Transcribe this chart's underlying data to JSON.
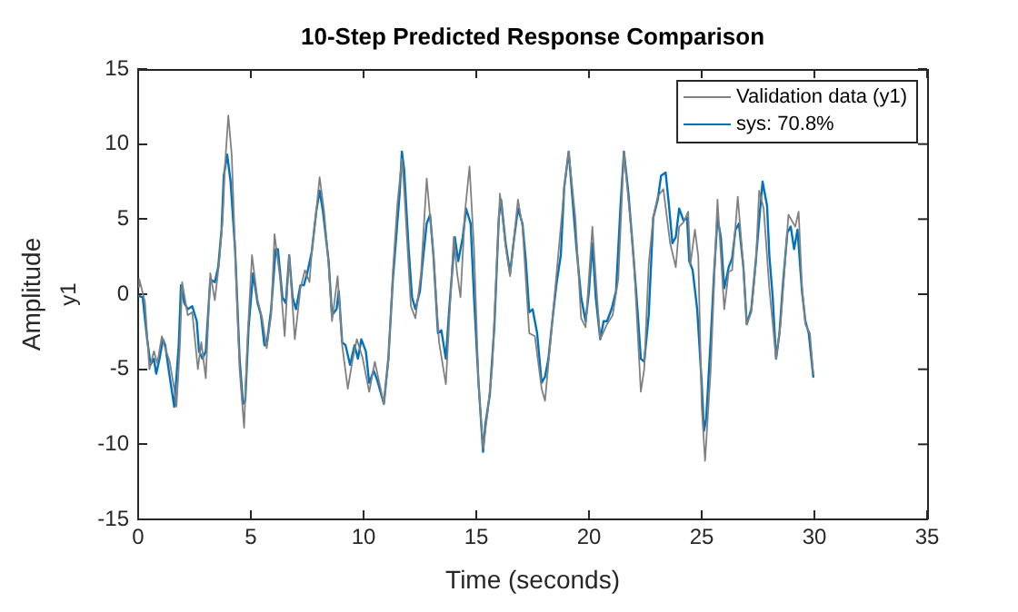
{
  "chart_data": {
    "type": "line",
    "title": "10-Step Predicted Response Comparison",
    "xlabel": "Time (seconds)",
    "ylabel": "Amplitude",
    "annotations": [
      "y1"
    ],
    "xlim": [
      0,
      35
    ],
    "xticks": [
      0,
      5,
      10,
      15,
      20,
      25,
      30,
      35
    ],
    "ylim": [
      -15,
      15
    ],
    "yticks": [
      -15,
      -10,
      -5,
      0,
      5,
      10,
      15
    ],
    "grid": false,
    "legend": "top right",
    "marker": "none",
    "line_style": "solid",
    "series": [
      {
        "name": "Validation data (y1)",
        "color": "#808080",
        "x": [
          0,
          0.05,
          0.3,
          0.5,
          0.7,
          0.85,
          1.05,
          1.2,
          1.4,
          1.6,
          1.7,
          1.85,
          1.95,
          2.2,
          2.4,
          2.65,
          2.8,
          3.0,
          3.2,
          3.4,
          3.6,
          3.75,
          3.85,
          4.0,
          4.15,
          4.3,
          4.5,
          4.7,
          4.85,
          5.05,
          5.3,
          5.5,
          5.7,
          5.9,
          6.05,
          6.3,
          6.5,
          6.7,
          6.95,
          7.2,
          7.4,
          7.6,
          7.7,
          7.9,
          8.05,
          8.25,
          8.45,
          8.6,
          8.85,
          9.05,
          9.3,
          9.5,
          9.7,
          9.95,
          10.25,
          10.5,
          10.9,
          11.1,
          11.3,
          11.5,
          11.7,
          11.8,
          12.1,
          12.3,
          12.55,
          12.8,
          13.1,
          13.35,
          13.65,
          14.0,
          14.15,
          14.3,
          14.5,
          14.7,
          14.9,
          15.1,
          15.3,
          15.5,
          15.7,
          16.05,
          16.3,
          16.5,
          16.85,
          17.05,
          17.35,
          17.6,
          17.9,
          18.05,
          18.3,
          18.6,
          18.9,
          19.1,
          19.4,
          19.65,
          19.85,
          20.15,
          20.35,
          20.5,
          20.8,
          21.05,
          21.3,
          21.55,
          21.8,
          22.0,
          22.3,
          22.45,
          22.65,
          22.85,
          23.05,
          23.3,
          23.6,
          23.85,
          24.0,
          24.2,
          24.4,
          24.5,
          24.7,
          24.85,
          25.0,
          25.15,
          25.4,
          25.7,
          26.0,
          26.2,
          26.35,
          26.6,
          26.85,
          27.0,
          27.2,
          27.4,
          27.55,
          27.75,
          28.0,
          28.3,
          28.5,
          28.85,
          29.15,
          29.3,
          29.45,
          29.6,
          29.8,
          29.95
        ],
        "values": [
          0.5,
          1,
          -0.5,
          -5,
          -3.8,
          -4.6,
          -2.8,
          -3.6,
          -4.5,
          -6.3,
          -7.5,
          -3.5,
          0.8,
          -1.4,
          -1.2,
          -5,
          -3.2,
          -5.6,
          1.4,
          -0.4,
          2.2,
          5,
          8.5,
          11.9,
          9.3,
          3,
          -5,
          -8.9,
          -3,
          2.6,
          -0.4,
          -1.6,
          -3.6,
          -1.4,
          4,
          1,
          -2.8,
          2.6,
          -3,
          0.4,
          1.6,
          0.8,
          2.8,
          5.5,
          7.8,
          5.5,
          2,
          -1.8,
          1.2,
          -3.4,
          -6.3,
          -4.5,
          -3,
          -4.2,
          -6.5,
          -4.5,
          -7.3,
          -4.5,
          1.5,
          6,
          9,
          7,
          -0.8,
          -1.6,
          1.4,
          7.7,
          2.6,
          -3.2,
          -6,
          3.8,
          1.4,
          -0.2,
          5.5,
          8.5,
          3,
          -6,
          -10.3,
          -7.9,
          -5,
          6.7,
          3.2,
          1.2,
          6.3,
          4.5,
          -2.6,
          -2.8,
          -6.3,
          -7.1,
          -3,
          2,
          7,
          9.5,
          5,
          -1.6,
          -2.2,
          4.5,
          0,
          -3,
          -2,
          -1.4,
          1,
          9.5,
          5.5,
          2,
          -6.5,
          -5,
          2,
          5.1,
          6.5,
          7,
          3.4,
          1.8,
          4.5,
          4.8,
          5.5,
          2,
          4.3,
          2.5,
          -7.5,
          -11.1,
          -5,
          6.3,
          -1,
          1.5,
          1.6,
          6.5,
          1.8,
          -2,
          -1.2,
          2,
          6.9,
          5.7,
          0.4,
          -4.3,
          -2,
          5.3,
          4.5,
          5.5,
          0.5,
          -2,
          -2.6,
          -5.3
        ]
      },
      {
        "name": "sys: 70.8%",
        "color": "#0072bd",
        "x": [
          0,
          0.2,
          0.4,
          0.55,
          0.7,
          0.8,
          0.95,
          1.1,
          1.2,
          1.4,
          1.6,
          1.8,
          1.9,
          2.05,
          2.2,
          2.4,
          2.6,
          2.7,
          2.85,
          3.0,
          3.2,
          3.4,
          3.55,
          3.7,
          3.8,
          3.95,
          4.1,
          4.3,
          4.5,
          4.65,
          4.75,
          4.9,
          5.1,
          5.3,
          5.45,
          5.6,
          5.7,
          5.9,
          6.1,
          6.2,
          6.4,
          6.55,
          6.7,
          6.85,
          7.0,
          7.2,
          7.35,
          7.5,
          7.7,
          7.9,
          8.05,
          8.2,
          8.45,
          8.6,
          8.8,
          8.9,
          9.05,
          9.2,
          9.4,
          9.6,
          9.75,
          9.9,
          10.1,
          10.25,
          10.45,
          10.6,
          10.75,
          10.9,
          11.1,
          11.3,
          11.6,
          11.7,
          11.8,
          12.0,
          12.15,
          12.3,
          12.5,
          12.6,
          12.8,
          12.95,
          13.1,
          13.3,
          13.45,
          13.65,
          13.8,
          14.05,
          14.2,
          14.4,
          14.55,
          14.75,
          14.9,
          15.1,
          15.3,
          15.4,
          15.6,
          15.8,
          16.0,
          16.1,
          16.3,
          16.5,
          16.65,
          16.85,
          17.05,
          17.2,
          17.35,
          17.5,
          17.7,
          17.9,
          18.05,
          18.2,
          18.4,
          18.55,
          18.75,
          18.9,
          19.1,
          19.25,
          19.45,
          19.65,
          19.85,
          20.0,
          20.15,
          20.3,
          20.5,
          20.65,
          20.8,
          21.0,
          21.2,
          21.4,
          21.55,
          21.75,
          21.95,
          22.15,
          22.3,
          22.45,
          22.65,
          22.85,
          23.05,
          23.2,
          23.4,
          23.55,
          23.7,
          23.85,
          24.0,
          24.2,
          24.35,
          24.45,
          24.6,
          24.8,
          25.0,
          25.1,
          25.2,
          25.4,
          25.55,
          25.7,
          25.85,
          26.0,
          26.2,
          26.35,
          26.5,
          26.65,
          26.85,
          27.0,
          27.2,
          27.4,
          27.55,
          27.7,
          27.9,
          28.0,
          28.15,
          28.3,
          28.45,
          28.6,
          28.8,
          28.95,
          29.1,
          29.25,
          29.45,
          29.6,
          29.75,
          29.95
        ],
        "values": [
          -0.1,
          -0.2,
          -3,
          -4.7,
          -4.3,
          -5.3,
          -4.3,
          -3,
          -3.4,
          -5.5,
          -7.5,
          -3.4,
          0.6,
          -0.6,
          -1,
          -0.8,
          -1.8,
          -3.8,
          -4.3,
          -3.8,
          1,
          0.8,
          1.8,
          4.3,
          7.9,
          9.3,
          7.5,
          3,
          -4.3,
          -7.3,
          -7.1,
          -2.2,
          1.4,
          -0.6,
          -1.4,
          -3.4,
          -3.4,
          -1,
          3,
          3,
          -0.2,
          -0.6,
          2.6,
          -0.2,
          -1,
          0.6,
          0.6,
          1.4,
          2.8,
          5.5,
          6.9,
          5.5,
          2.2,
          -1.4,
          -1,
          0.2,
          -3.2,
          -3.4,
          -4.7,
          -3.4,
          -4.3,
          -3,
          -3.8,
          -5.9,
          -5.1,
          -5.7,
          -6.5,
          -7.3,
          -4.3,
          1,
          6.7,
          9.5,
          8.3,
          3,
          -0.2,
          -1,
          0.2,
          1.8,
          4.7,
          5.3,
          2.6,
          -2.6,
          -2.4,
          -4.3,
          -1,
          3.8,
          2.2,
          3.8,
          5.7,
          4.7,
          -0.2,
          -5.9,
          -10.5,
          -8.7,
          -6.7,
          -2.2,
          5.1,
          6.3,
          3.4,
          1.4,
          3.4,
          5.7,
          4.7,
          2.2,
          -1.2,
          -1,
          -2.6,
          -5.9,
          -5.5,
          -4.3,
          -1.4,
          0.6,
          2.6,
          7.1,
          9.5,
          6.7,
          3,
          -0.2,
          -1.8,
          0.2,
          3.4,
          -0.2,
          -3,
          -1.8,
          -1.8,
          -1,
          0.2,
          5.9,
          9.5,
          6.7,
          3,
          -1,
          -4.3,
          -4.5,
          -1.4,
          5.1,
          6.3,
          7.9,
          8.1,
          5.9,
          3.4,
          3.8,
          5.7,
          4.9,
          5.1,
          2.2,
          1.6,
          -1,
          -5.9,
          -9.1,
          -8.3,
          -3,
          1.4,
          5.1,
          3.8,
          0.4,
          1.8,
          2.4,
          4.3,
          4.7,
          1.8,
          -2,
          -1,
          2.2,
          4.9,
          7.5,
          5.9,
          2.6,
          -0.2,
          -4.3,
          -2.6,
          0.6,
          4.1,
          4.5,
          3,
          4.3,
          0.2,
          -1.8,
          -2.6,
          -5.5
        ]
      }
    ]
  }
}
